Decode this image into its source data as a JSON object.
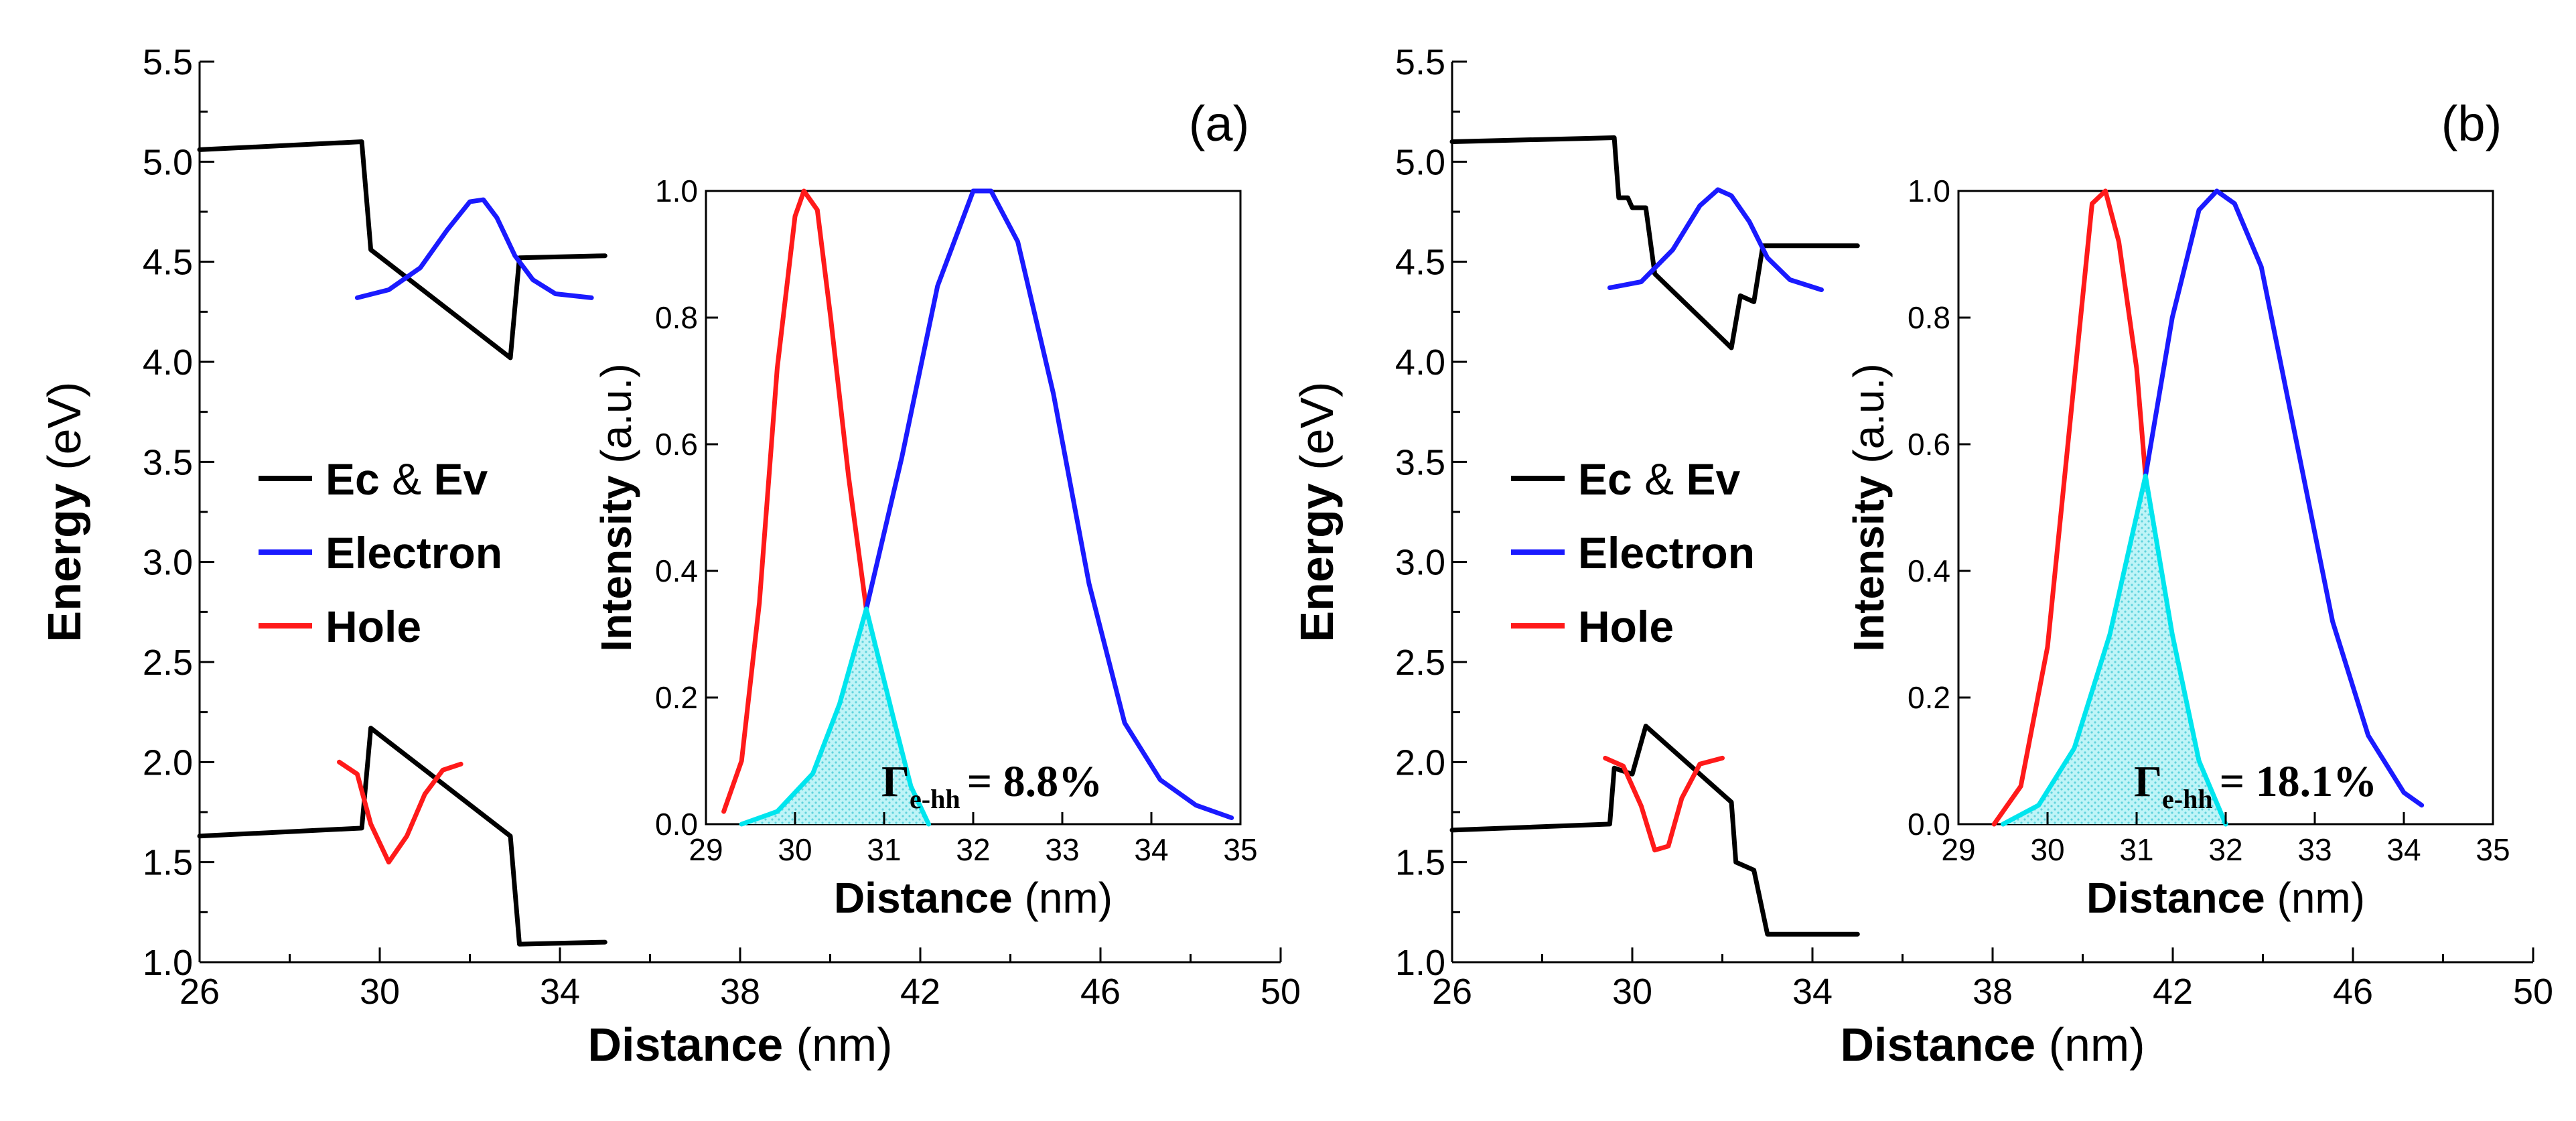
{
  "figure": {
    "panels": [
      {
        "panel_label": "(a)",
        "main": {
          "xlabel_bold": "Distance",
          "xlabel_unit": "(nm)",
          "ylabel_bold": "Energy",
          "ylabel_unit": "(eV)",
          "xticks": [
            "26",
            "30",
            "34",
            "38",
            "42",
            "46",
            "50"
          ],
          "yticks": [
            "1.0",
            "1.5",
            "2.0",
            "2.5",
            "3.0",
            "3.5",
            "4.0",
            "4.5",
            "5.0",
            "5.5"
          ],
          "legend": [
            {
              "label_bold": "Ec",
              "label_mid": "&",
              "label_bold2": "Ev",
              "color": "#000000"
            },
            {
              "label_bold": "Electron",
              "label_mid": "",
              "label_bold2": "",
              "color": "#1a1aff"
            },
            {
              "label_bold": "Hole",
              "label_mid": "",
              "label_bold2": "",
              "color": "#ff1a1a"
            }
          ]
        },
        "inset": {
          "xlabel_bold": "Distance",
          "xlabel_unit": "(nm)",
          "ylabel_bold": "Intensity",
          "ylabel_unit": "(a.u.)",
          "xticks": [
            "29",
            "30",
            "31",
            "32",
            "33",
            "34",
            "35"
          ],
          "yticks": [
            "0.0",
            "0.2",
            "0.4",
            "0.6",
            "0.8",
            "1.0"
          ],
          "overlap_symbol": "Γ",
          "overlap_subscript": "e-hh",
          "overlap_value": "= 8.8%"
        }
      },
      {
        "panel_label": "(b)",
        "main": {
          "xlabel_bold": "Distance",
          "xlabel_unit": "(nm)",
          "ylabel_bold": "Energy",
          "ylabel_unit": "(eV)",
          "xticks": [
            "26",
            "30",
            "34",
            "38",
            "42",
            "46",
            "50"
          ],
          "yticks": [
            "1.0",
            "1.5",
            "2.0",
            "2.5",
            "3.0",
            "3.5",
            "4.0",
            "4.5",
            "5.0",
            "5.5"
          ],
          "legend": [
            {
              "label_bold": "Ec",
              "label_mid": "&",
              "label_bold2": "Ev",
              "color": "#000000"
            },
            {
              "label_bold": "Electron",
              "label_mid": "",
              "label_bold2": "",
              "color": "#1a1aff"
            },
            {
              "label_bold": "Hole",
              "label_mid": "",
              "label_bold2": "",
              "color": "#ff1a1a"
            }
          ]
        },
        "inset": {
          "xlabel_bold": "Distance",
          "xlabel_unit": "(nm)",
          "ylabel_bold": "Intensity",
          "ylabel_unit": "(a.u.)",
          "xticks": [
            "29",
            "30",
            "31",
            "32",
            "33",
            "34",
            "35"
          ],
          "yticks": [
            "0.0",
            "0.2",
            "0.4",
            "0.6",
            "0.8",
            "1.0"
          ],
          "overlap_symbol": "Γ",
          "overlap_subscript": "e-hh",
          "overlap_value": "= 18.1%"
        }
      }
    ]
  },
  "chart_data": [
    {
      "type": "line",
      "panel": "(a)",
      "xlabel": "Distance (nm)",
      "ylabel": "Energy (eV)",
      "xlim": [
        26,
        50
      ],
      "ylim": [
        1.0,
        5.5
      ],
      "grid": false,
      "legend_position": "left",
      "series": [
        {
          "name": "Ec & Ev",
          "color": "#000000",
          "segments": [
            [
              [
                26.0,
                5.06
              ],
              [
                29.6,
                5.1
              ],
              [
                29.8,
                4.56
              ],
              [
                32.9,
                4.02
              ],
              [
                33.1,
                4.52
              ],
              [
                35.0,
                4.53
              ]
            ],
            [
              [
                26.0,
                1.63
              ],
              [
                29.6,
                1.67
              ],
              [
                29.8,
                2.17
              ],
              [
                32.9,
                1.63
              ],
              [
                33.1,
                1.09
              ],
              [
                35.0,
                1.1
              ]
            ]
          ]
        },
        {
          "name": "Electron",
          "color": "#1a1aff",
          "points": [
            [
              29.5,
              4.32
            ],
            [
              30.2,
              4.36
            ],
            [
              30.9,
              4.47
            ],
            [
              31.5,
              4.66
            ],
            [
              32.0,
              4.8
            ],
            [
              32.3,
              4.81
            ],
            [
              32.6,
              4.72
            ],
            [
              33.0,
              4.53
            ],
            [
              33.4,
              4.41
            ],
            [
              33.9,
              4.34
            ],
            [
              34.7,
              4.32
            ]
          ]
        },
        {
          "name": "Hole",
          "color": "#ff1a1a",
          "points": [
            [
              29.1,
              2.0
            ],
            [
              29.5,
              1.94
            ],
            [
              29.8,
              1.69
            ],
            [
              30.2,
              1.5
            ],
            [
              30.6,
              1.63
            ],
            [
              31.0,
              1.84
            ],
            [
              31.4,
              1.96
            ],
            [
              31.8,
              1.99
            ]
          ]
        }
      ]
    },
    {
      "type": "line",
      "panel": "(a) inset",
      "xlabel": "Distance (nm)",
      "ylabel": "Intensity (a.u.)",
      "xlim": [
        29,
        35
      ],
      "ylim": [
        0.0,
        1.0
      ],
      "grid": false,
      "series": [
        {
          "name": "Hole",
          "color": "#ff1a1a",
          "points": [
            [
              29.2,
              0.02
            ],
            [
              29.4,
              0.1
            ],
            [
              29.6,
              0.35
            ],
            [
              29.8,
              0.72
            ],
            [
              30.0,
              0.96
            ],
            [
              30.1,
              1.0
            ],
            [
              30.25,
              0.97
            ],
            [
              30.4,
              0.8
            ],
            [
              30.6,
              0.55
            ],
            [
              30.8,
              0.34
            ]
          ]
        },
        {
          "name": "Electron",
          "color": "#1a1aff",
          "points": [
            [
              30.8,
              0.34
            ],
            [
              31.2,
              0.58
            ],
            [
              31.6,
              0.85
            ],
            [
              32.0,
              1.0
            ],
            [
              32.2,
              1.0
            ],
            [
              32.5,
              0.92
            ],
            [
              32.9,
              0.68
            ],
            [
              33.3,
              0.38
            ],
            [
              33.7,
              0.16
            ],
            [
              34.1,
              0.07
            ],
            [
              34.5,
              0.03
            ],
            [
              34.9,
              0.01
            ]
          ]
        },
        {
          "name": "Overlap",
          "color": "#00e5ee",
          "points": [
            [
              29.4,
              0.0
            ],
            [
              29.8,
              0.02
            ],
            [
              30.2,
              0.08
            ],
            [
              30.5,
              0.19
            ],
            [
              30.8,
              0.34
            ],
            [
              31.1,
              0.17
            ],
            [
              31.3,
              0.06
            ],
            [
              31.5,
              0.0
            ]
          ]
        }
      ],
      "annotation": "Γe-hh = 8.8%"
    },
    {
      "type": "line",
      "panel": "(b)",
      "xlabel": "Distance (nm)",
      "ylabel": "Energy (eV)",
      "xlim": [
        26,
        50
      ],
      "ylim": [
        1.0,
        5.5
      ],
      "grid": false,
      "legend_position": "left",
      "series": [
        {
          "name": "Ec & Ev",
          "color": "#000000",
          "segments": [
            [
              [
                26.0,
                5.1
              ],
              [
                29.6,
                5.12
              ],
              [
                29.7,
                4.82
              ],
              [
                29.9,
                4.82
              ],
              [
                30.0,
                4.77
              ],
              [
                30.3,
                4.77
              ],
              [
                30.5,
                4.44
              ],
              [
                32.2,
                4.07
              ],
              [
                32.4,
                4.33
              ],
              [
                32.7,
                4.3
              ],
              [
                32.9,
                4.58
              ],
              [
                35.0,
                4.58
              ]
            ],
            [
              [
                26.0,
                1.66
              ],
              [
                29.5,
                1.69
              ],
              [
                29.6,
                1.97
              ],
              [
                30.0,
                1.94
              ],
              [
                30.3,
                2.18
              ],
              [
                32.2,
                1.8
              ],
              [
                32.3,
                1.5
              ],
              [
                32.7,
                1.46
              ],
              [
                33.0,
                1.14
              ],
              [
                35.0,
                1.14
              ]
            ]
          ]
        },
        {
          "name": "Electron",
          "color": "#1a1aff",
          "points": [
            [
              29.5,
              4.37
            ],
            [
              30.2,
              4.4
            ],
            [
              30.9,
              4.56
            ],
            [
              31.5,
              4.78
            ],
            [
              31.9,
              4.86
            ],
            [
              32.2,
              4.83
            ],
            [
              32.6,
              4.7
            ],
            [
              33.0,
              4.52
            ],
            [
              33.5,
              4.41
            ],
            [
              34.2,
              4.36
            ]
          ]
        },
        {
          "name": "Hole",
          "color": "#ff1a1a",
          "points": [
            [
              29.4,
              2.02
            ],
            [
              29.8,
              1.98
            ],
            [
              30.2,
              1.78
            ],
            [
              30.5,
              1.56
            ],
            [
              30.8,
              1.58
            ],
            [
              31.1,
              1.82
            ],
            [
              31.5,
              1.99
            ],
            [
              32.0,
              2.02
            ]
          ]
        }
      ]
    },
    {
      "type": "line",
      "panel": "(b) inset",
      "xlabel": "Distance (nm)",
      "ylabel": "Intensity (a.u.)",
      "xlim": [
        29,
        35
      ],
      "ylim": [
        0.0,
        1.0
      ],
      "grid": false,
      "series": [
        {
          "name": "Hole",
          "color": "#ff1a1a",
          "points": [
            [
              29.4,
              0.0
            ],
            [
              29.7,
              0.06
            ],
            [
              30.0,
              0.28
            ],
            [
              30.3,
              0.7
            ],
            [
              30.5,
              0.98
            ],
            [
              30.65,
              1.0
            ],
            [
              30.8,
              0.92
            ],
            [
              31.0,
              0.72
            ],
            [
              31.1,
              0.55
            ]
          ]
        },
        {
          "name": "Electron",
          "color": "#1a1aff",
          "points": [
            [
              31.1,
              0.55
            ],
            [
              31.4,
              0.8
            ],
            [
              31.7,
              0.97
            ],
            [
              31.9,
              1.0
            ],
            [
              32.1,
              0.98
            ],
            [
              32.4,
              0.88
            ],
            [
              32.8,
              0.6
            ],
            [
              33.2,
              0.32
            ],
            [
              33.6,
              0.14
            ],
            [
              34.0,
              0.05
            ],
            [
              34.2,
              0.03
            ]
          ]
        },
        {
          "name": "Overlap",
          "color": "#00e5ee",
          "points": [
            [
              29.5,
              0.0
            ],
            [
              29.9,
              0.03
            ],
            [
              30.3,
              0.12
            ],
            [
              30.7,
              0.3
            ],
            [
              31.1,
              0.55
            ],
            [
              31.4,
              0.3
            ],
            [
              31.7,
              0.1
            ],
            [
              32.0,
              0.0
            ]
          ]
        }
      ],
      "annotation": "Γe-hh = 18.1%"
    }
  ]
}
